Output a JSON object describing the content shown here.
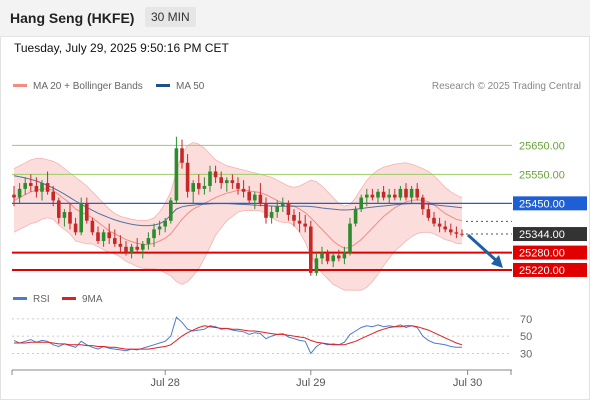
{
  "header": {
    "title": "Hang Seng (HKFE)",
    "timeframe": "30 MIN"
  },
  "datetime": "Tuesday, July 29, 2025 9:50:16 PM CET",
  "credit": "Research © 2025 Trading Central",
  "legend": {
    "bb": {
      "label": "MA 20 + Bollinger Bands",
      "color": "#f28b82"
    },
    "ma50": {
      "label": "MA 50",
      "color": "#1f4e8c"
    },
    "rsi": {
      "label": "RSI",
      "color": "#4a7bd0"
    },
    "rsi_ma": {
      "label": "9MA",
      "color": "#e02020"
    }
  },
  "colors": {
    "up": "#2e8b2e",
    "down": "#c62828",
    "band_fill": "#fbd9d8",
    "line_green": "#9ccc65",
    "line_blue": "#1f5fd6",
    "line_red": "#e00000",
    "arrow": "#1f5fa8",
    "last_price_box": "#333333",
    "rsi_line": "#4a7bd0",
    "rsi_ma": "#e02020"
  },
  "chart_data": {
    "type": "candlestick",
    "price_range": [
      25175,
      25755
    ],
    "resistance": [
      {
        "value": 25650,
        "label": "25650.00",
        "style": "green"
      },
      {
        "value": 25550,
        "label": "25550.00",
        "style": "green"
      },
      {
        "value": 25450,
        "label": "25450.00",
        "style": "blue"
      }
    ],
    "last_price": {
      "value": 25344,
      "label": "25344.00"
    },
    "support": [
      {
        "value": 25280,
        "label": "25280.00"
      },
      {
        "value": 25220,
        "label": "25220.00"
      }
    ],
    "x_labels": [
      {
        "label": "Jul 28",
        "index": 27
      },
      {
        "label": "Jul 29",
        "index": 53
      },
      {
        "label": "Jul 30",
        "index": 81
      }
    ],
    "ohlc": [
      [
        25480,
        25510,
        25440,
        25470
      ],
      [
        25470,
        25520,
        25450,
        25500
      ],
      [
        25500,
        25540,
        25480,
        25520
      ],
      [
        25520,
        25550,
        25490,
        25510
      ],
      [
        25510,
        25540,
        25470,
        25490
      ],
      [
        25490,
        25530,
        25460,
        25520
      ],
      [
        25520,
        25560,
        25480,
        25490
      ],
      [
        25490,
        25510,
        25440,
        25460
      ],
      [
        25460,
        25470,
        25380,
        25400
      ],
      [
        25400,
        25430,
        25370,
        25420
      ],
      [
        25420,
        25450,
        25360,
        25380
      ],
      [
        25380,
        25400,
        25340,
        25350
      ],
      [
        25350,
        25470,
        25340,
        25450
      ],
      [
        25450,
        25470,
        25380,
        25390
      ],
      [
        25390,
        25400,
        25340,
        25350
      ],
      [
        25350,
        25370,
        25310,
        25320
      ],
      [
        25320,
        25360,
        25300,
        25350
      ],
      [
        25350,
        25380,
        25310,
        25330
      ],
      [
        25330,
        25360,
        25300,
        25310
      ],
      [
        25310,
        25340,
        25280,
        25300
      ],
      [
        25300,
        25320,
        25270,
        25280
      ],
      [
        25280,
        25310,
        25260,
        25300
      ],
      [
        25300,
        25330,
        25280,
        25290
      ],
      [
        25290,
        25320,
        25260,
        25310
      ],
      [
        25310,
        25350,
        25290,
        25330
      ],
      [
        25330,
        25380,
        25300,
        25360
      ],
      [
        25360,
        25390,
        25340,
        25370
      ],
      [
        25370,
        25400,
        25350,
        25390
      ],
      [
        25390,
        25470,
        25380,
        25460
      ],
      [
        25460,
        25680,
        25450,
        25640
      ],
      [
        25640,
        25670,
        25570,
        25590
      ],
      [
        25590,
        25620,
        25470,
        25490
      ],
      [
        25490,
        25530,
        25450,
        25520
      ],
      [
        25520,
        25550,
        25480,
        25500
      ],
      [
        25500,
        25540,
        25480,
        25510
      ],
      [
        25510,
        25580,
        25490,
        25560
      ],
      [
        25560,
        25580,
        25520,
        25540
      ],
      [
        25540,
        25560,
        25500,
        25520
      ],
      [
        25520,
        25540,
        25490,
        25530
      ],
      [
        25530,
        25550,
        25500,
        25520
      ],
      [
        25520,
        25540,
        25480,
        25500
      ],
      [
        25500,
        25530,
        25470,
        25490
      ],
      [
        25490,
        25510,
        25450,
        25460
      ],
      [
        25460,
        25490,
        25430,
        25480
      ],
      [
        25480,
        25520,
        25440,
        25450
      ],
      [
        25450,
        25470,
        25380,
        25400
      ],
      [
        25400,
        25440,
        25380,
        25420
      ],
      [
        25420,
        25460,
        25400,
        25440
      ],
      [
        25440,
        25470,
        25420,
        25450
      ],
      [
        25450,
        25460,
        25390,
        25410
      ],
      [
        25410,
        25430,
        25370,
        25390
      ],
      [
        25390,
        25420,
        25350,
        25380
      ],
      [
        25380,
        25410,
        25350,
        25370
      ],
      [
        25370,
        25390,
        25200,
        25210
      ],
      [
        25210,
        25280,
        25200,
        25260
      ],
      [
        25260,
        25300,
        25240,
        25280
      ],
      [
        25280,
        25290,
        25240,
        25250
      ],
      [
        25250,
        25280,
        25230,
        25270
      ],
      [
        25270,
        25290,
        25250,
        25260
      ],
      [
        25260,
        25300,
        25240,
        25280
      ],
      [
        25280,
        25400,
        25270,
        25380
      ],
      [
        25380,
        25440,
        25370,
        25430
      ],
      [
        25430,
        25480,
        25420,
        25470
      ],
      [
        25470,
        25500,
        25440,
        25480
      ],
      [
        25480,
        25500,
        25460,
        25470
      ],
      [
        25470,
        25500,
        25450,
        25490
      ],
      [
        25490,
        25510,
        25460,
        25470
      ],
      [
        25470,
        25500,
        25450,
        25480
      ],
      [
        25480,
        25500,
        25460,
        25470
      ],
      [
        25470,
        25510,
        25460,
        25500
      ],
      [
        25500,
        25520,
        25460,
        25470
      ],
      [
        25470,
        25510,
        25450,
        25500
      ],
      [
        25500,
        25520,
        25460,
        25470
      ],
      [
        25470,
        25480,
        25410,
        25430
      ],
      [
        25430,
        25450,
        25390,
        25400
      ],
      [
        25400,
        25420,
        25370,
        25380
      ],
      [
        25380,
        25400,
        25350,
        25370
      ],
      [
        25370,
        25390,
        25350,
        25360
      ],
      [
        25360,
        25380,
        25340,
        25350
      ],
      [
        25350,
        25370,
        25330,
        25345
      ],
      [
        25345,
        25360,
        25335,
        25344
      ]
    ],
    "bb_mid": [
      25460,
      25470,
      25480,
      25490,
      25495,
      25500,
      25500,
      25495,
      25480,
      25465,
      25450,
      25430,
      25420,
      25410,
      25400,
      25385,
      25370,
      25355,
      25345,
      25335,
      25325,
      25318,
      25312,
      25308,
      25308,
      25312,
      25320,
      25330,
      25345,
      25370,
      25395,
      25415,
      25430,
      25440,
      25450,
      25460,
      25470,
      25478,
      25485,
      25490,
      25495,
      25495,
      25493,
      25490,
      25487,
      25480,
      25470,
      25460,
      25452,
      25447,
      25440,
      25430,
      25418,
      25400,
      25380,
      25360,
      25340,
      25320,
      25305,
      25295,
      25298,
      25310,
      25325,
      25345,
      25365,
      25385,
      25405,
      25420,
      25435,
      25445,
      25455,
      25460,
      25462,
      25460,
      25455,
      25445,
      25430,
      25415,
      25405,
      25395,
      25390
    ],
    "bb_upper": [
      25570,
      25580,
      25590,
      25600,
      25605,
      25605,
      25600,
      25595,
      25585,
      25570,
      25555,
      25540,
      25525,
      25510,
      25490,
      25470,
      25450,
      25430,
      25415,
      25405,
      25400,
      25395,
      25392,
      25390,
      25392,
      25400,
      25420,
      25450,
      25490,
      25560,
      25620,
      25650,
      25660,
      25655,
      25640,
      25620,
      25600,
      25590,
      25580,
      25575,
      25570,
      25565,
      25560,
      25555,
      25550,
      25545,
      25540,
      25530,
      25520,
      25510,
      25505,
      25510,
      25520,
      25530,
      25525,
      25510,
      25490,
      25470,
      25450,
      25440,
      25445,
      25470,
      25500,
      25530,
      25550,
      25565,
      25575,
      25580,
      25585,
      25588,
      25590,
      25585,
      25578,
      25570,
      25560,
      25545,
      25525,
      25505,
      25490,
      25478,
      25470
    ],
    "bb_lower": [
      25350,
      25360,
      25370,
      25380,
      25385,
      25395,
      25400,
      25395,
      25375,
      25360,
      25345,
      25320,
      25315,
      25310,
      25310,
      25300,
      25290,
      25280,
      25275,
      25265,
      25250,
      25241,
      25232,
      25226,
      25224,
      25224,
      25220,
      25210,
      25200,
      25180,
      25170,
      25180,
      25200,
      25225,
      25260,
      25300,
      25340,
      25366,
      25390,
      25405,
      25420,
      25425,
      25426,
      25425,
      25424,
      25415,
      25400,
      25390,
      25384,
      25384,
      25375,
      25350,
      25316,
      25270,
      25235,
      25210,
      25190,
      25170,
      25160,
      25150,
      25151,
      25150,
      25150,
      25160,
      25180,
      25205,
      25235,
      25260,
      25285,
      25302,
      25320,
      25335,
      25346,
      25350,
      25350,
      25345,
      25335,
      25325,
      25320,
      25312,
      25310
    ],
    "ma50": [
      25545,
      25542,
      25538,
      25533,
      25527,
      25520,
      25512,
      25503,
      25493,
      25482,
      25470,
      25458,
      25447,
      25436,
      25426,
      25416,
      25408,
      25400,
      25393,
      25387,
      25382,
      25378,
      25375,
      25373,
      25373,
      25375,
      25380,
      25390,
      25410,
      25430,
      25438,
      25442,
      25444,
      25446,
      25447,
      25448,
      25449,
      25449,
      25449,
      25448,
      25447,
      25446,
      25445,
      25444,
      25443,
      25442,
      25441,
      25440,
      25440,
      25440,
      25440,
      25440,
      25440,
      25439,
      25437,
      25434,
      25432,
      25430,
      25428,
      25427,
      25428,
      25430,
      25432,
      25435,
      25437,
      25439,
      25441,
      25443,
      25445,
      25447,
      25448,
      25449,
      25449,
      25448,
      25447,
      25445,
      25443,
      25441,
      25439,
      25437,
      25435
    ],
    "rsi": {
      "ticks": [
        70,
        50,
        30
      ],
      "range": [
        20,
        78
      ],
      "values": [
        45,
        42,
        44,
        46,
        43,
        45,
        44,
        40,
        38,
        41,
        39,
        37,
        44,
        40,
        37,
        35,
        38,
        36,
        35,
        34,
        33,
        35,
        34,
        36,
        38,
        40,
        42,
        44,
        50,
        72,
        66,
        58,
        56,
        57,
        58,
        62,
        61,
        58,
        59,
        57,
        56,
        55,
        52,
        54,
        53,
        47,
        50,
        52,
        53,
        49,
        47,
        45,
        44,
        30,
        38,
        42,
        40,
        41,
        40,
        43,
        52,
        56,
        60,
        62,
        61,
        63,
        61,
        62,
        61,
        63,
        60,
        62,
        60,
        50,
        45,
        42,
        41,
        40,
        38,
        37,
        37
      ],
      "ma": [
        42,
        42,
        42,
        43,
        43,
        43,
        43,
        42,
        41,
        41,
        40,
        40,
        40,
        39,
        39,
        38,
        38,
        37,
        37,
        36,
        35,
        35,
        35,
        35,
        35,
        36,
        37,
        38,
        40,
        45,
        50,
        54,
        57,
        60,
        62,
        61,
        60,
        59,
        59,
        58,
        58,
        57,
        56,
        56,
        55,
        54,
        53,
        52,
        52,
        51,
        50,
        49,
        48,
        45,
        43,
        42,
        41,
        40,
        40,
        40,
        42,
        44,
        47,
        50,
        53,
        56,
        58,
        60,
        61,
        61,
        62,
        62,
        61,
        59,
        57,
        54,
        51,
        48,
        45,
        42,
        40
      ]
    }
  }
}
